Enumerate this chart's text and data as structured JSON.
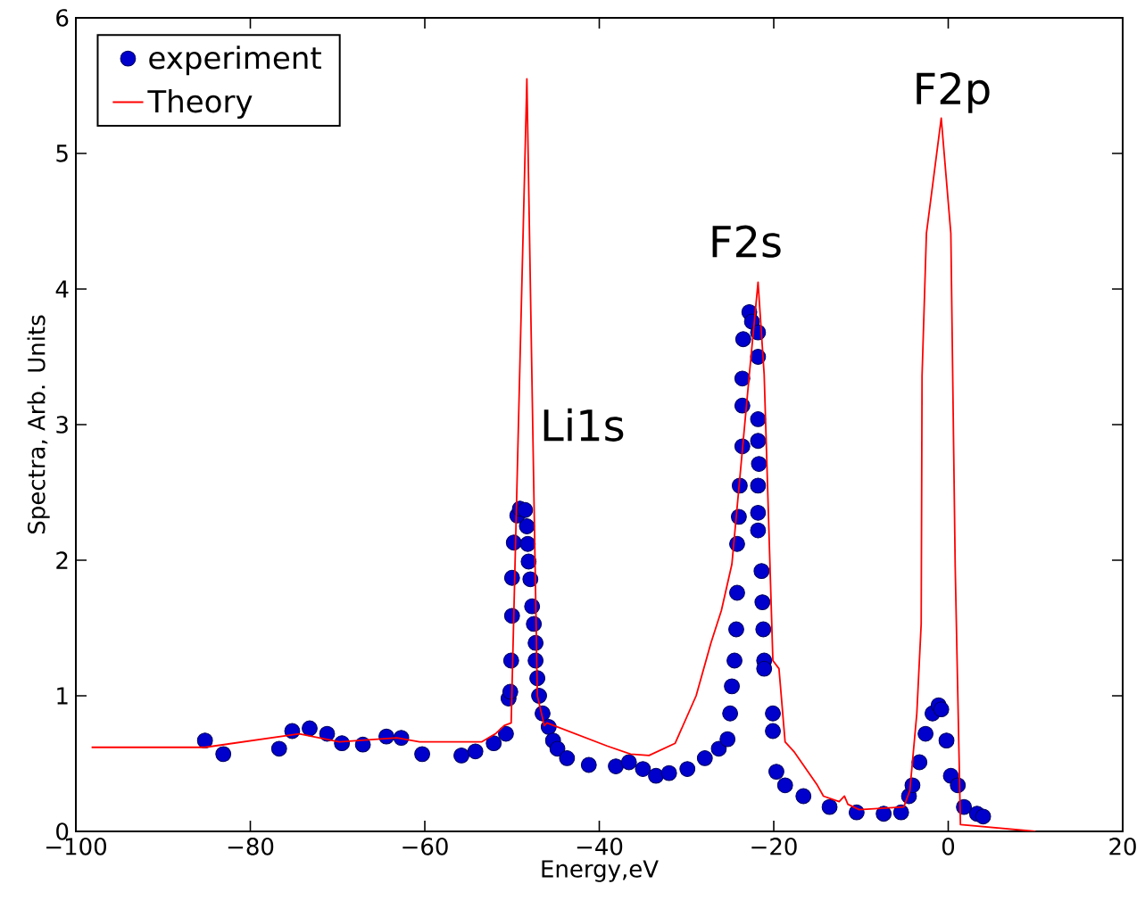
{
  "chart_data": {
    "type": "line",
    "xlabel": "Energy,eV",
    "ylabel": "Spectra, Arb. Units",
    "xlim": [
      -100,
      20
    ],
    "ylim": [
      0,
      6
    ],
    "xticks": [
      {
        "value": -100,
        "label": "−100"
      },
      {
        "value": -80,
        "label": "−80"
      },
      {
        "value": -60,
        "label": "−60"
      },
      {
        "value": -40,
        "label": "−40"
      },
      {
        "value": -20,
        "label": "−20"
      },
      0,
      20
    ],
    "yticks": [
      0,
      1,
      2,
      3,
      4,
      5,
      6
    ],
    "legend": "top left",
    "grid": false,
    "series": [
      {
        "name": "experiment",
        "type": "scatter",
        "marker": "circle",
        "color": "#0000cc",
        "x": [
          -85.2,
          -83.1,
          -76.7,
          -75.2,
          -73.2,
          -71.2,
          -69.5,
          -67.1,
          -64.4,
          -62.7,
          -60.3,
          -55.8,
          -54.2,
          -52.1,
          -50.7,
          -50.4,
          -50.2,
          -50.1,
          -50.0,
          -50.0,
          -49.8,
          -49.4,
          -49.1,
          -48.5,
          -48.3,
          -48.2,
          -48.1,
          -47.9,
          -47.7,
          -47.5,
          -47.3,
          -47.3,
          -47.1,
          -46.9,
          -46.5,
          -45.8,
          -45.3,
          -44.8,
          -43.7,
          -41.2,
          -38.1,
          -36.6,
          -35.0,
          -33.5,
          -32.0,
          -29.9,
          -27.9,
          -26.3,
          -25.3,
          -25.0,
          -24.8,
          -24.5,
          -24.3,
          -24.2,
          -24.2,
          -24.0,
          -23.9,
          -23.6,
          -23.6,
          -23.6,
          -23.5,
          -22.8,
          -22.5,
          -21.8,
          -21.8,
          -21.8,
          -21.8,
          -21.7,
          -21.8,
          -21.8,
          -21.8,
          -21.4,
          -21.3,
          -21.2,
          -21.1,
          -21.1,
          -20.1,
          -20.1,
          -19.7,
          -18.7,
          -16.6,
          -13.6,
          -10.5,
          -7.4,
          -5.4,
          -4.5,
          -4.1,
          -3.3,
          -2.6,
          -1.8,
          -1.1,
          -0.8,
          -0.2,
          0.3,
          1.1,
          1.8,
          3.3,
          4.0
        ],
        "values": [
          0.67,
          0.57,
          0.61,
          0.74,
          0.76,
          0.72,
          0.65,
          0.64,
          0.7,
          0.69,
          0.57,
          0.56,
          0.59,
          0.65,
          0.72,
          0.98,
          1.03,
          1.26,
          1.59,
          1.87,
          2.13,
          2.33,
          2.38,
          2.37,
          2.25,
          2.12,
          1.99,
          1.86,
          1.66,
          1.53,
          1.39,
          1.26,
          1.13,
          1.0,
          0.87,
          0.77,
          0.67,
          0.61,
          0.54,
          0.49,
          0.48,
          0.51,
          0.46,
          0.41,
          0.43,
          0.46,
          0.54,
          0.61,
          0.68,
          0.87,
          1.07,
          1.26,
          1.49,
          1.76,
          2.12,
          2.32,
          2.55,
          2.84,
          3.14,
          3.34,
          3.63,
          3.83,
          3.76,
          3.68,
          3.5,
          3.04,
          2.88,
          2.71,
          2.55,
          2.35,
          2.22,
          1.92,
          1.69,
          1.49,
          1.26,
          1.2,
          0.87,
          0.74,
          0.44,
          0.34,
          0.26,
          0.18,
          0.14,
          0.13,
          0.14,
          0.26,
          0.34,
          0.51,
          0.72,
          0.87,
          0.93,
          0.9,
          0.67,
          0.41,
          0.34,
          0.18,
          0.13,
          0.11
        ]
      },
      {
        "name": "Theory",
        "marker": "none",
        "line_style": "solid",
        "color": "#ff0000",
        "x": [
          -98.2,
          -85.2,
          -74.4,
          -69.8,
          -63.2,
          -60.6,
          -53.5,
          -51.9,
          -50.9,
          -50.1,
          -48.3,
          -47.5,
          -47.1,
          -46.3,
          -46.0,
          -39.1,
          -36.4,
          -34.3,
          -31.3,
          -28.9,
          -27.2,
          -26.0,
          -24.8,
          -22.8,
          -21.8,
          -21.1,
          -20.1,
          -19.4,
          -18.7,
          -17.7,
          -15.0,
          -14.3,
          -12.5,
          -11.9,
          -11.5,
          -10.2,
          -5.1,
          -4.4,
          -3.6,
          -3.1,
          -3.0,
          -2.5,
          -0.8,
          0.3,
          0.8,
          1.4,
          10.0
        ],
        "values": [
          0.62,
          0.62,
          0.72,
          0.66,
          0.69,
          0.66,
          0.66,
          0.72,
          0.78,
          0.8,
          5.55,
          2.5,
          1.0,
          0.78,
          0.8,
          0.63,
          0.57,
          0.56,
          0.65,
          1.0,
          1.39,
          1.63,
          1.97,
          3.37,
          4.05,
          3.37,
          1.26,
          1.2,
          0.66,
          0.59,
          0.34,
          0.26,
          0.22,
          0.26,
          0.2,
          0.16,
          0.18,
          0.3,
          0.87,
          1.53,
          3.36,
          4.41,
          5.26,
          4.41,
          1.95,
          0.05,
          0.0
        ]
      }
    ],
    "annotations": [
      "Li1s",
      "F2s",
      "F2p"
    ]
  }
}
